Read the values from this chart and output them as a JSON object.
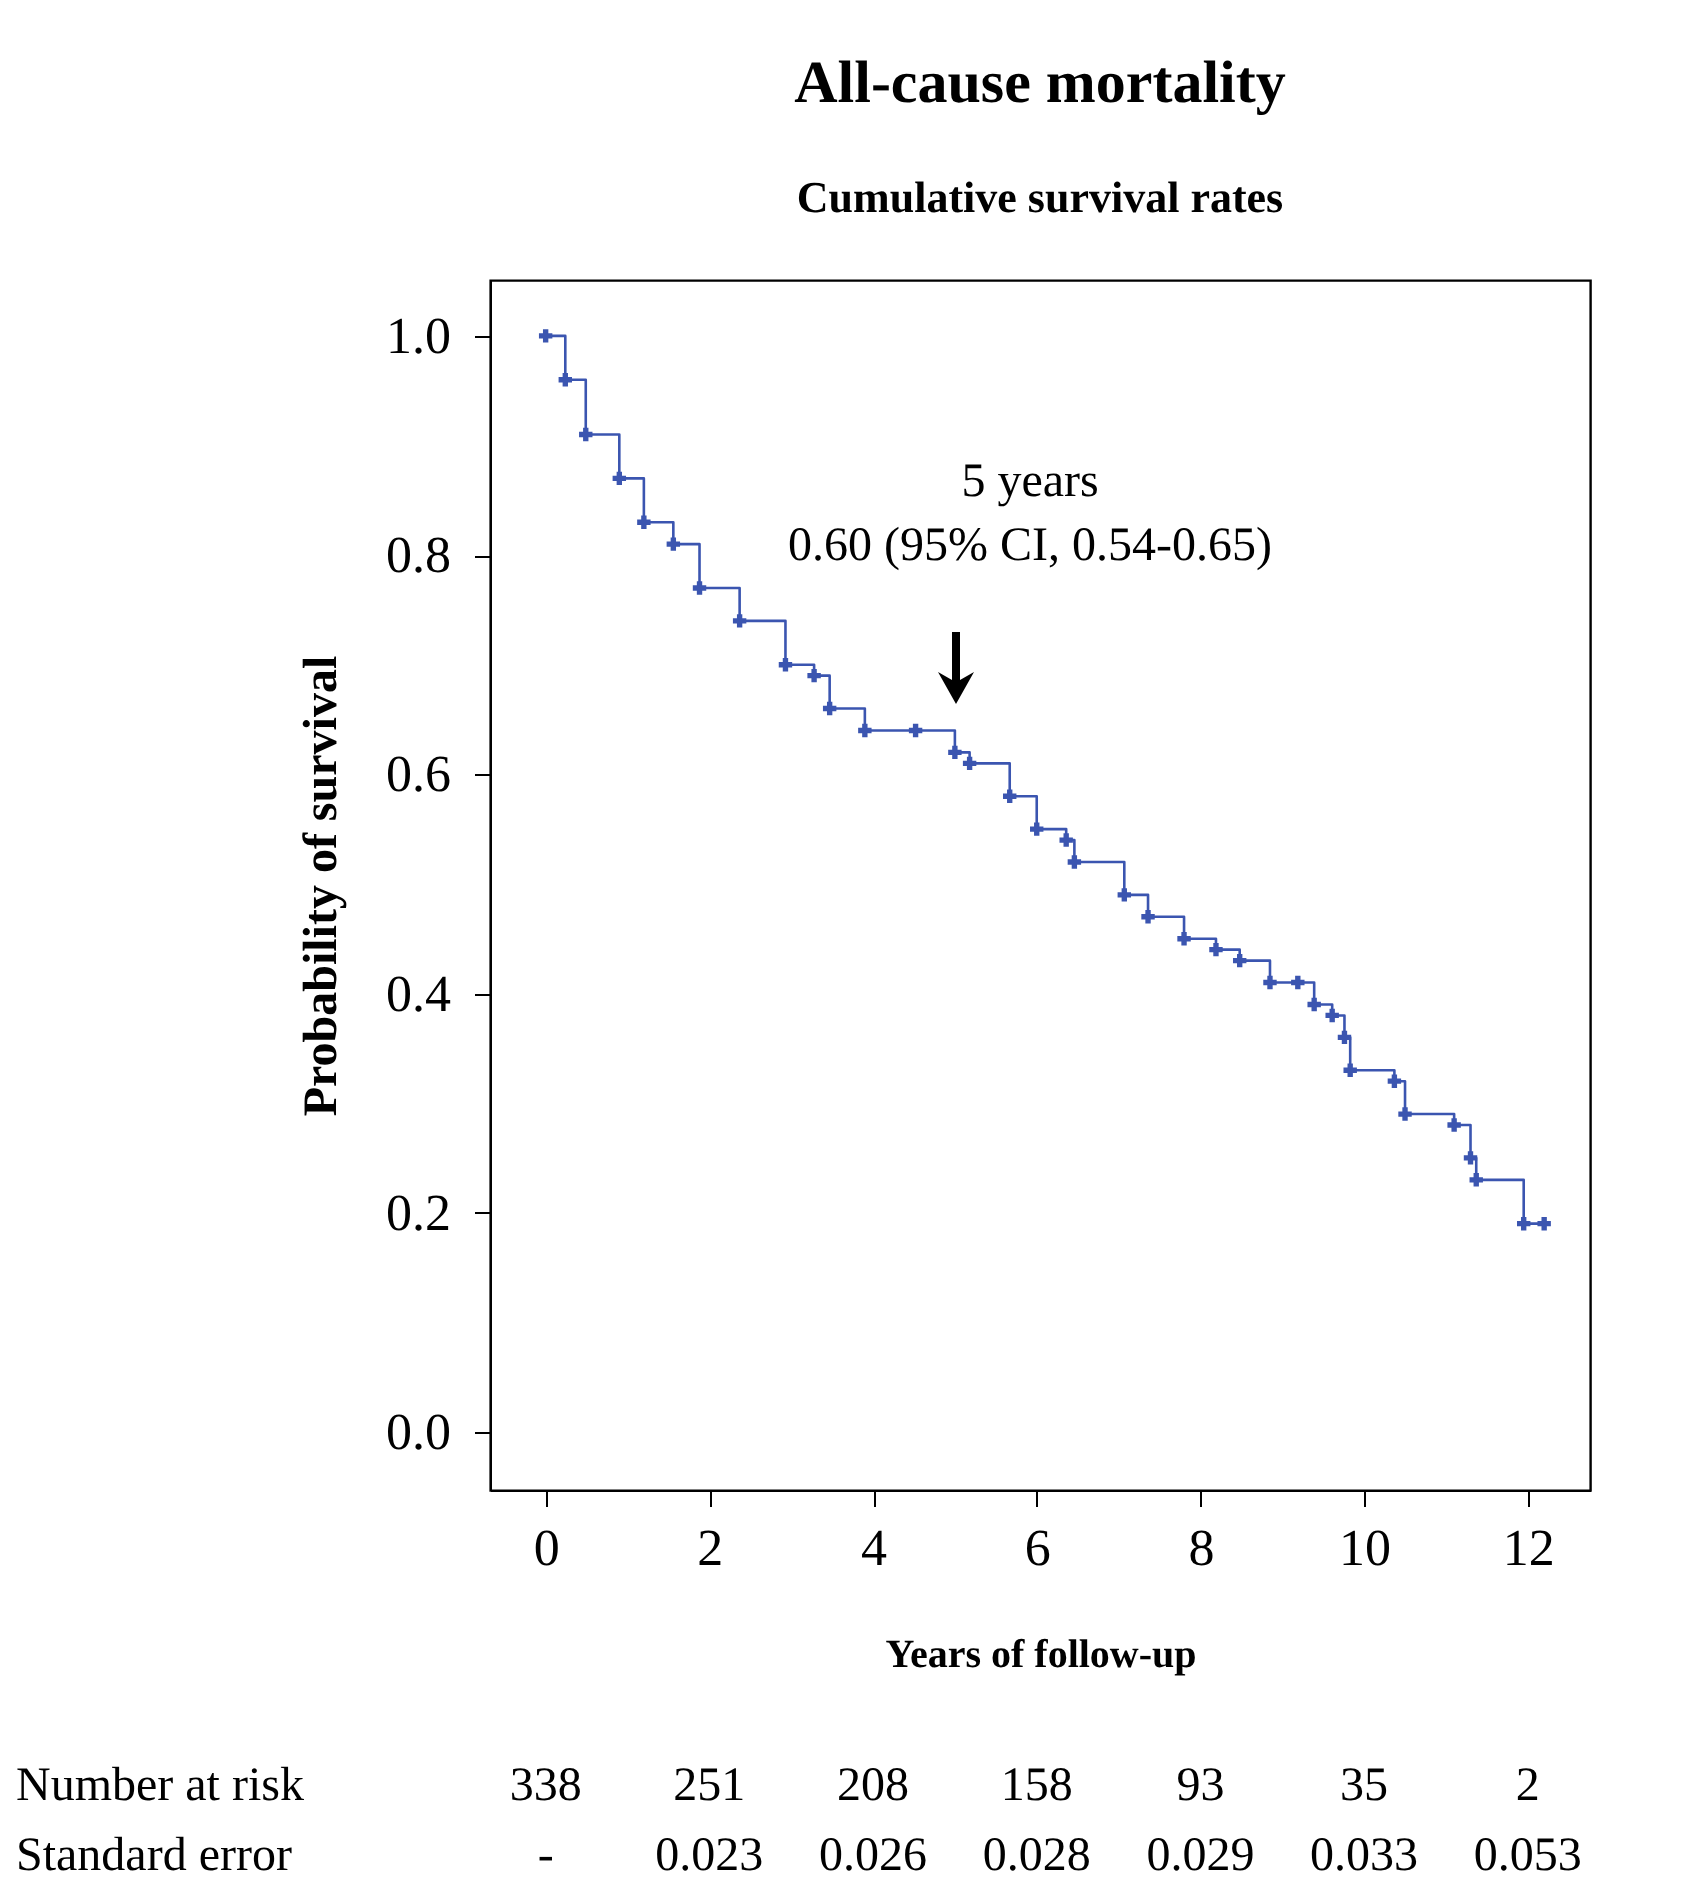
{
  "chart_data": {
    "type": "step",
    "title": "All-cause mortality",
    "subtitle": "Cumulative survival rates",
    "xlabel": "Years of follow-up",
    "ylabel": "Probability of survival",
    "xlim": [
      -0.68,
      12.76
    ],
    "ylim": [
      -0.053,
      1.051
    ],
    "xticks": [
      0,
      2,
      4,
      6,
      8,
      10,
      12
    ],
    "yticks": [
      {
        "value": 0,
        "label": "0.0"
      },
      {
        "value": 0.2,
        "label": "0.2"
      },
      {
        "value": 0.4,
        "label": "0.4"
      },
      {
        "value": 0.6,
        "label": "0.6"
      },
      {
        "value": 0.8,
        "label": "0.8"
      },
      {
        "value": 1,
        "label": "1.0"
      }
    ],
    "grid": false,
    "marker": "cross",
    "line_style": "solid",
    "x": [
      0,
      0.24,
      0.49,
      0.9,
      1.2,
      1.56,
      1.88,
      2.37,
      2.93,
      3.28,
      3.47,
      3.9,
      4.52,
      5.0,
      5.18,
      5.67,
      6.0,
      6.36,
      6.46,
      7.07,
      7.36,
      7.8,
      8.19,
      8.48,
      8.85,
      9.19,
      9.39,
      9.61,
      9.76,
      9.83,
      10.37,
      10.5,
      11.1,
      11.3,
      11.37,
      11.95,
      12.2
    ],
    "series": [
      {
        "color": "#3b55b0",
        "values": [
          1.0,
          0.96,
          0.91,
          0.87,
          0.83,
          0.81,
          0.77,
          0.74,
          0.7,
          0.69,
          0.66,
          0.64,
          0.64,
          0.62,
          0.61,
          0.58,
          0.55,
          0.54,
          0.52,
          0.49,
          0.47,
          0.45,
          0.44,
          0.43,
          0.41,
          0.41,
          0.39,
          0.38,
          0.36,
          0.33,
          0.32,
          0.29,
          0.28,
          0.25,
          0.23,
          0.19,
          0.19
        ]
      }
    ],
    "annotations": [
      "5 years\n0.60 (95% CI, 0.54-0.65)",
      "Number at risk",
      "338",
      "251",
      "208",
      "158",
      "93",
      "35",
      "2",
      "Standard error",
      "-",
      "0.023",
      "0.026",
      "0.028",
      "0.029",
      "0.033",
      "0.053"
    ]
  }
}
